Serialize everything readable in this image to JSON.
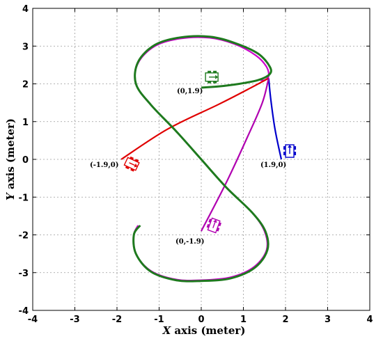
{
  "chart_data": {
    "type": "line",
    "xlabel_var": "X",
    "xlabel_rest": " axis (meter)",
    "ylabel_var": "Y",
    "ylabel_rest": " axis (meter)",
    "xlim": [
      -4,
      4
    ],
    "ylim": [
      -4,
      4
    ],
    "xticks": [
      -4,
      -3,
      -2,
      -1,
      0,
      1,
      2,
      3,
      4
    ],
    "yticks": [
      -4,
      -3,
      -2,
      -1,
      0,
      1,
      2,
      3,
      4
    ],
    "xtick_labels": [
      "-4",
      "-3",
      "-2",
      "-1",
      "0",
      "1",
      "2",
      "3",
      "4"
    ],
    "ytick_labels": [
      "-4",
      "-3",
      "-2",
      "-1",
      "0",
      "1",
      "2",
      "3",
      "4"
    ],
    "grid": true,
    "reference_path": {
      "color": "#cc00cc",
      "points": [
        [
          -1.5,
          -1.75
        ],
        [
          -1.6,
          -2.0
        ],
        [
          -1.55,
          -2.5
        ],
        [
          -1.2,
          -2.95
        ],
        [
          -0.6,
          -3.18
        ],
        [
          0,
          -3.2
        ],
        [
          0.7,
          -3.12
        ],
        [
          1.25,
          -2.85
        ],
        [
          1.55,
          -2.4
        ],
        [
          1.5,
          -1.9
        ],
        [
          1.2,
          -1.4
        ],
        [
          0.6,
          -0.75
        ],
        [
          0,
          0
        ],
        [
          -0.6,
          0.75
        ],
        [
          -1.2,
          1.45
        ],
        [
          -1.55,
          2.0
        ],
        [
          -1.5,
          2.55
        ],
        [
          -1.1,
          3.0
        ],
        [
          -0.5,
          3.2
        ],
        [
          0.2,
          3.22
        ],
        [
          0.8,
          3.05
        ],
        [
          1.3,
          2.75
        ],
        [
          1.55,
          2.45
        ],
        [
          1.6,
          2.2
        ],
        [
          1.5,
          2.1
        ],
        [
          1.4,
          2.1
        ]
      ]
    },
    "tracked_path": {
      "color": "#1e7a1e",
      "points": [
        [
          0,
          1.9
        ],
        [
          0.4,
          1.93
        ],
        [
          0.9,
          2.0
        ],
        [
          1.35,
          2.1
        ],
        [
          1.62,
          2.25
        ],
        [
          1.63,
          2.45
        ],
        [
          1.35,
          2.8
        ],
        [
          0.8,
          3.08
        ],
        [
          0.2,
          3.25
        ],
        [
          -0.5,
          3.23
        ],
        [
          -1.1,
          3.03
        ],
        [
          -1.5,
          2.58
        ],
        [
          -1.55,
          2.0
        ],
        [
          -1.2,
          1.45
        ],
        [
          -0.6,
          0.75
        ],
        [
          0,
          0
        ],
        [
          0.6,
          -0.75
        ],
        [
          1.2,
          -1.4
        ],
        [
          1.52,
          -1.9
        ],
        [
          1.57,
          -2.4
        ],
        [
          1.27,
          -2.87
        ],
        [
          0.7,
          -3.15
        ],
        [
          0,
          -3.22
        ],
        [
          -0.6,
          -3.2
        ],
        [
          -1.2,
          -2.97
        ],
        [
          -1.55,
          -2.5
        ],
        [
          -1.6,
          -2.0
        ],
        [
          -1.45,
          -1.75
        ]
      ]
    },
    "approach_paths": [
      {
        "color": "#e00000",
        "points": [
          [
            -1.9,
            0
          ],
          [
            -0.8,
            0.8
          ],
          [
            0.4,
            1.45
          ],
          [
            1.1,
            1.85
          ],
          [
            1.6,
            2.15
          ]
        ]
      },
      {
        "color": "#0000cc",
        "points": [
          [
            1.9,
            0
          ],
          [
            1.75,
            0.8
          ],
          [
            1.65,
            1.6
          ],
          [
            1.6,
            2.15
          ]
        ]
      },
      {
        "color": "#b000b0",
        "points": [
          [
            0,
            -1.9
          ],
          [
            0.6,
            -0.6
          ],
          [
            1.1,
            0.6
          ],
          [
            1.45,
            1.5
          ],
          [
            1.6,
            2.15
          ]
        ]
      }
    ],
    "annotations": [
      {
        "text": "(0,1.9)",
        "x": 0.0,
        "y": 1.9
      },
      {
        "text": "(-1.9,0)",
        "x": -1.9,
        "y": 0.0
      },
      {
        "text": "(1.9,0)",
        "x": 1.9,
        "y": 0.0
      },
      {
        "text": "(0,-1.9)",
        "x": 0.0,
        "y": -1.9
      }
    ],
    "robots": [
      {
        "color": "#1e7a1e",
        "x": 0.25,
        "y": 2.18,
        "heading": 0
      },
      {
        "color": "#e00000",
        "x": -1.65,
        "y": -0.12,
        "heading": -25
      },
      {
        "color": "#0000cc",
        "x": 2.1,
        "y": 0.22,
        "heading": 90
      },
      {
        "color": "#b000b0",
        "x": 0.3,
        "y": -1.75,
        "heading": 70
      }
    ]
  }
}
